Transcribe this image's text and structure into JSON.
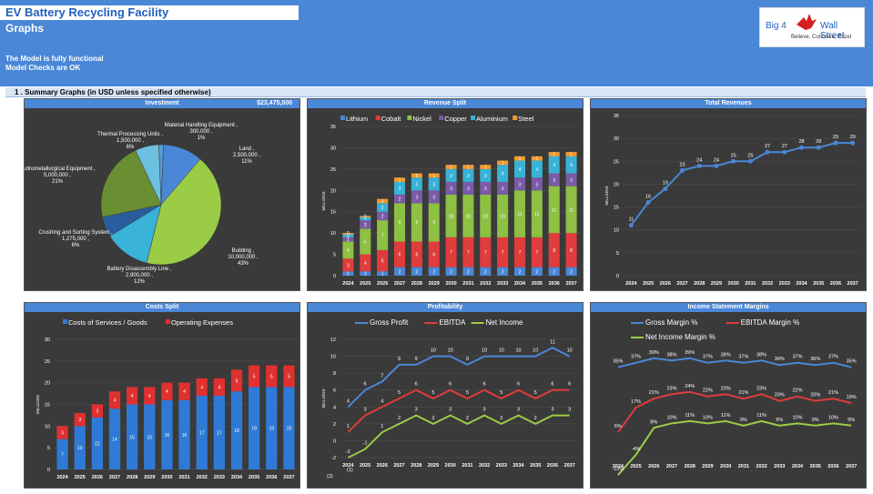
{
  "header": {
    "title": "EV Battery Recycling Facility",
    "subtitle": "Graphs",
    "status_line1": "The Model is fully functional",
    "status_line2": "Model Checks are OK"
  },
  "logo": {
    "text_left": "Big 4",
    "text_right": "Wall Street",
    "tagline": "Believe, Conceive, Excel"
  },
  "section": {
    "label": "1 . Summary Graphs (in USD unless specified otherwise)"
  },
  "colors": {
    "header": "#4a87d6",
    "panel_bg": "#3a3a3a",
    "line": "#4a87d6"
  },
  "chart_data": [
    {
      "id": "investment",
      "type": "pie",
      "title": "Investment",
      "total": "$23,475,000",
      "slices": [
        {
          "label": "Material Handling Equipment , 300,000 , 1%",
          "value": 300000,
          "color": "#5b9bd5"
        },
        {
          "label": "Land , 2,500,000 , 11%",
          "value": 2500000,
          "color": "#4a87d6"
        },
        {
          "label": "Building , 10,000,000 , 43%",
          "value": 10000000,
          "color": "#9bcc45"
        },
        {
          "label": "Battery Disassembly Line , 2,900,000 , 12%",
          "value": 2900000,
          "color": "#38b2d6"
        },
        {
          "label": "Crushing and Sorting System , 1,275,000 , 6%",
          "value": 1275000,
          "color": "#2a5d9e"
        },
        {
          "label": "Hydrometallurgical Equipment , 5,000,000 , 21%",
          "value": 5000000,
          "color": "#6a8f32"
        },
        {
          "label": "Thermal Processing Units , 1,500,000 , 6%",
          "value": 1500000,
          "color": "#6ec0e0"
        }
      ]
    },
    {
      "id": "revenue_split",
      "type": "bar",
      "stacked": true,
      "title": "Revenue Split",
      "ylabel": "MILLIONS",
      "ylim": [
        0,
        35
      ],
      "categories": [
        "2024",
        "2025",
        "2026",
        "2027",
        "2028",
        "2029",
        "2030",
        "2031",
        "2032",
        "2033",
        "2034",
        "2035",
        "2036",
        "2037"
      ],
      "series": [
        {
          "name": "Lithium",
          "color": "#4a87d6",
          "values": [
            1,
            1,
            1,
            2,
            2,
            2,
            2,
            2,
            2,
            2,
            2,
            2,
            2,
            2
          ]
        },
        {
          "name": "Cobalt",
          "color": "#e03c3c",
          "values": [
            3,
            4,
            5,
            6,
            6,
            6,
            7,
            7,
            7,
            7,
            7,
            7,
            8,
            8
          ]
        },
        {
          "name": "Nickel",
          "color": "#8dc043",
          "values": [
            4,
            6,
            7,
            9,
            9,
            9,
            10,
            10,
            10,
            10,
            11,
            11,
            11,
            11
          ]
        },
        {
          "name": "Copper",
          "color": "#7b5aa6",
          "values": [
            1,
            2,
            2,
            2,
            3,
            3,
            3,
            3,
            3,
            3,
            3,
            3,
            3,
            3
          ]
        },
        {
          "name": "Aluminium",
          "color": "#38b2d6",
          "values": [
            1,
            1,
            2,
            3,
            3,
            3,
            3,
            3,
            3,
            4,
            4,
            4,
            4,
            4
          ]
        },
        {
          "name": "Steel",
          "color": "#f39a2c",
          "values": [
            0,
            0,
            1,
            1,
            1,
            1,
            1,
            1,
            1,
            1,
            1,
            1,
            1,
            1
          ]
        }
      ]
    },
    {
      "id": "total_revenues",
      "type": "line",
      "title": "Total Revenues",
      "ylabel": "MILLIONS",
      "ylim": [
        0,
        35
      ],
      "categories": [
        "2024",
        "2025",
        "2026",
        "2027",
        "2028",
        "2029",
        "2030",
        "2031",
        "2032",
        "2033",
        "2034",
        "2035",
        "2036",
        "2037"
      ],
      "series": [
        {
          "values": [
            11,
            16,
            19,
            23,
            24,
            24,
            25,
            25,
            27,
            27,
            28,
            28,
            29,
            29
          ]
        }
      ]
    },
    {
      "id": "costs_split",
      "type": "bar",
      "stacked": true,
      "title": "Costs Split",
      "ylabel": "MILLIONS",
      "ylim": [
        0,
        30
      ],
      "categories": [
        "2024",
        "2025",
        "2026",
        "2027",
        "2028",
        "2029",
        "2030",
        "2031",
        "2032",
        "2033",
        "2034",
        "2035",
        "2036",
        "2037"
      ],
      "series": [
        {
          "name": "Costs of Services / Goods",
          "color": "#2f7ad6",
          "values": [
            7,
            10,
            12,
            14,
            15,
            15,
            16,
            16,
            17,
            17,
            18,
            19,
            19,
            19
          ]
        },
        {
          "name": "Operating Expenses",
          "color": "#e03030",
          "values": [
            3,
            3,
            3,
            4,
            4,
            4,
            4,
            4,
            4,
            4,
            5,
            5,
            5,
            5
          ]
        }
      ]
    },
    {
      "id": "profitability",
      "type": "line",
      "title": "Profitability",
      "ylabel": "MILLIONS",
      "ylim": [
        -2,
        12
      ],
      "categories": [
        "2024",
        "2025",
        "2026",
        "2027",
        "2028",
        "2029",
        "2030",
        "2031",
        "2032",
        "2033",
        "2034",
        "2035",
        "2036",
        "2037"
      ],
      "series": [
        {
          "name": "Gross Profit",
          "color": "#4a87d6",
          "values": [
            4,
            6,
            7,
            9,
            9,
            10,
            10,
            9,
            10,
            10,
            10,
            10,
            11,
            10
          ]
        },
        {
          "name": "EBITDA",
          "color": "#e03c3c",
          "values": [
            1,
            3,
            4,
            5,
            6,
            5,
            6,
            5,
            6,
            5,
            6,
            5,
            6,
            6
          ]
        },
        {
          "name": "Net Income",
          "color": "#9bcc45",
          "values": [
            -2,
            -1,
            1,
            2,
            3,
            2,
            3,
            2,
            3,
            2,
            3,
            2,
            3,
            3
          ]
        }
      ],
      "extra_labels": [
        "(2)",
        "(1)"
      ]
    },
    {
      "id": "income_margins",
      "type": "line",
      "title": "Income Statement Margins",
      "ylim": [
        -15,
        45
      ],
      "categories": [
        "2024",
        "2025",
        "2026",
        "2027",
        "2028",
        "2029",
        "2030",
        "2031",
        "2032",
        "2033",
        "2034",
        "2035",
        "2036",
        "2037"
      ],
      "series": [
        {
          "name": "Gross Margin %",
          "color": "#4a87d6",
          "values": [
            35,
            37,
            39,
            38,
            39,
            37,
            38,
            37,
            38,
            36,
            37,
            36,
            37,
            35
          ],
          "labels": [
            "35%",
            "37%",
            "39%",
            "38%",
            "39%",
            "37%",
            "38%",
            "37%",
            "38%",
            "36%",
            "37%",
            "36%",
            "37%",
            "35%"
          ]
        },
        {
          "name": "EBITDA Margin %",
          "color": "#e03c3c",
          "values": [
            6,
            17,
            21,
            23,
            24,
            22,
            23,
            21,
            23,
            20,
            22,
            20,
            21,
            19
          ],
          "labels": [
            "6%",
            "17%",
            "21%",
            "23%",
            "24%",
            "22%",
            "23%",
            "21%",
            "23%",
            "20%",
            "22%",
            "20%",
            "21%",
            "19%"
          ]
        },
        {
          "name": "Net Income Margin %",
          "color": "#9bcc45",
          "values": [
            -13,
            -4,
            8,
            10,
            11,
            10,
            11,
            9,
            11,
            9,
            10,
            9,
            10,
            9
          ],
          "labels": [
            "-13%",
            "-4%",
            "8%",
            "10%",
            "11%",
            "10%",
            "11%",
            "9%",
            "11%",
            "9%",
            "10%",
            "9%",
            "10%",
            "9%"
          ]
        }
      ]
    }
  ]
}
